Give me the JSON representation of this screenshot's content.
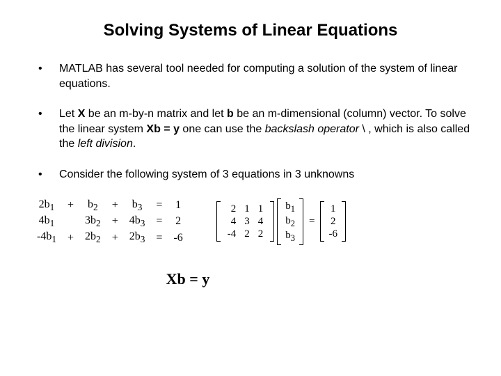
{
  "title": "Solving Systems of Linear Equations",
  "bullets": {
    "b1": "MATLAB has several tool needed for computing a solution of the system of linear equations.",
    "b2_p1": "Let ",
    "b2_X": "X",
    "b2_p2": " be an m-by-n matrix and let ",
    "b2_b": "b",
    "b2_p3": " be an m-dimensional (column) vector. To solve the linear system ",
    "b2_eq": "Xb = y",
    "b2_p4": " one can use the ",
    "b2_i1": "backslash operator",
    "b2_p5": " \\ , which is also called the ",
    "b2_i2": "left division",
    "b2_p6": ".",
    "b3": "Consider the following system of 3 equations in 3 unknowns"
  },
  "eqLeft": {
    "r1": {
      "c1": "2b",
      "s1": "1",
      "op1": "+",
      "c2": "b",
      "s2": "2",
      "op2": "+",
      "c3": "b",
      "s3": "3",
      "eq": "=",
      "rhs": "1"
    },
    "r2": {
      "c1": "4b",
      "s1": "1",
      "op1": "",
      "c2": "3b",
      "s2": "2",
      "op2": "+",
      "c3": "4b",
      "s3": "3",
      "eq": "=",
      "rhs": "2"
    },
    "r3": {
      "c1": "-4b",
      "s1": "1",
      "op1": "+",
      "c2": "2b",
      "s2": "2",
      "op2": "+",
      "c3": "2b",
      "s3": "3",
      "eq": "=",
      "rhs": "-6"
    }
  },
  "matA": {
    "r1c1": "2",
    "r1c2": "1",
    "r1c3": "1",
    "r2c1": "4",
    "r2c2": "3",
    "r2c3": "4",
    "r3c1": "-4",
    "r3c2": "2",
    "r3c3": "2"
  },
  "vecB": {
    "r1": "b",
    "s1": "1",
    "r2": "b",
    "s2": "2",
    "r3": "b",
    "s3": "3"
  },
  "vecY": {
    "r1": "1",
    "r2": "2",
    "r3": "-6"
  },
  "eqSign": "=",
  "mainEq": "Xb = y"
}
